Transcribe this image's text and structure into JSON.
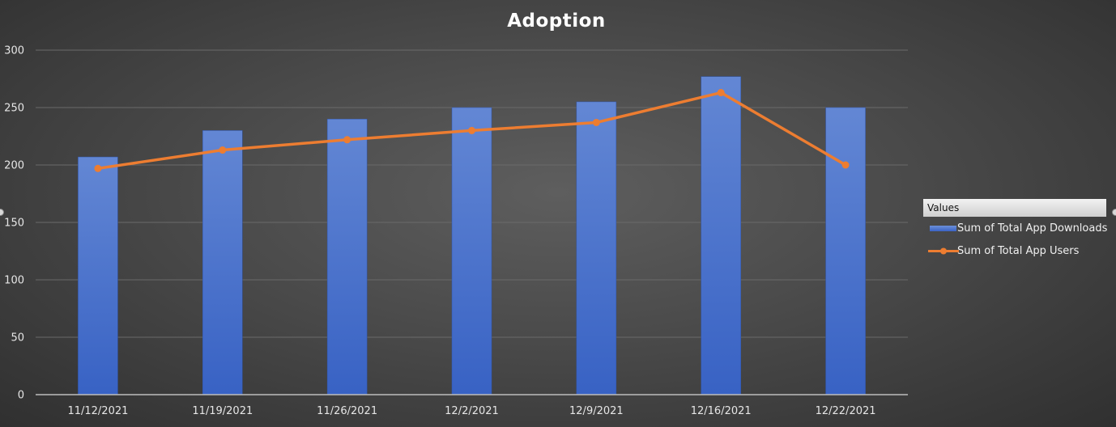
{
  "chart_data": {
    "type": "bar",
    "title": "Adoption",
    "xlabel": "",
    "ylabel": "",
    "ylim": [
      0,
      300
    ],
    "yticks": [
      0,
      50,
      100,
      150,
      200,
      250,
      300
    ],
    "categories": [
      "11/12/2021",
      "11/19/2021",
      "11/26/2021",
      "12/2/2021",
      "12/9/2021",
      "12/16/2021",
      "12/22/2021"
    ],
    "series": [
      {
        "name": "Sum of Total App Downloads",
        "type": "bar",
        "color": "#4472C4",
        "values": [
          207,
          230,
          240,
          250,
          255,
          277,
          250
        ]
      },
      {
        "name": "Sum of Total App Users",
        "type": "line",
        "color": "#ED7D31",
        "values": [
          197,
          213,
          222,
          230,
          237,
          263,
          200
        ]
      }
    ],
    "grid": true,
    "legend": {
      "title": "Values",
      "position": "right"
    }
  }
}
